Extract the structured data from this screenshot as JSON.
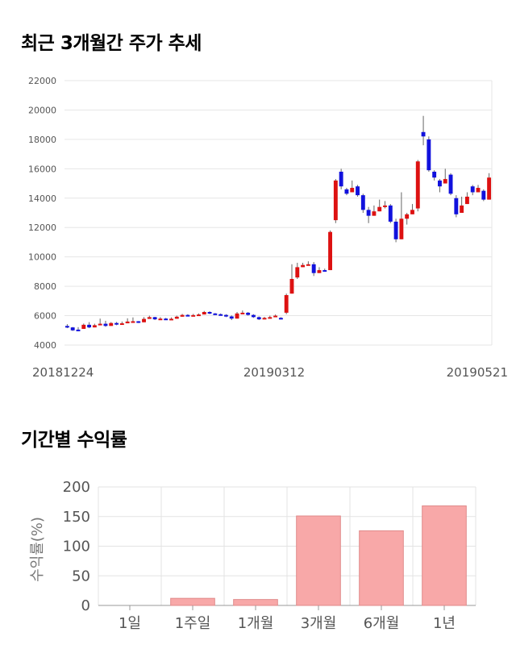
{
  "sections": {
    "price_title": "최근 3개월간 주가 추세",
    "returns_title": "기간별 수익률"
  },
  "chart_data": [
    {
      "type": "candlestick",
      "ylim": [
        4000,
        22000
      ],
      "y_ticks": [
        "22000",
        "20000",
        "18000",
        "16000",
        "14000",
        "12000",
        "10000",
        "8000",
        "6000",
        "4000"
      ],
      "x_tick_labels": [
        "20181224",
        "20190312",
        "20190521"
      ],
      "up_color": "#dd1111",
      "down_color": "#1111dd",
      "candles": [
        [
          5300,
          5420,
          5200,
          5150
        ],
        [
          5200,
          5230,
          5000,
          4960
        ],
        [
          5050,
          5180,
          5020,
          5220
        ],
        [
          5100,
          5420,
          5380,
          5460
        ],
        [
          5380,
          5560,
          5200,
          5150
        ],
        [
          5200,
          5410,
          5350,
          5450
        ],
        [
          5350,
          5520,
          5450,
          5800
        ],
        [
          5450,
          5650,
          5300,
          5240
        ],
        [
          5300,
          5520,
          5500,
          5560
        ],
        [
          5500,
          5570,
          5400,
          5350
        ],
        [
          5400,
          5580,
          5480,
          5600
        ],
        [
          5480,
          5700,
          5600,
          5820
        ],
        [
          5600,
          5720,
          5620,
          5880
        ],
        [
          5620,
          5630,
          5550,
          5500
        ],
        [
          5550,
          5820,
          5780,
          5900
        ],
        [
          5780,
          5950,
          5900,
          6000
        ],
        [
          5900,
          5920,
          5750,
          5700
        ],
        [
          5750,
          5840,
          5800,
          5900
        ],
        [
          5800,
          5850,
          5750,
          5700
        ],
        [
          5750,
          5830,
          5790,
          5880
        ],
        [
          5790,
          5950,
          5930,
          6000
        ],
        [
          5930,
          6080,
          6050,
          6120
        ],
        [
          6050,
          6100,
          6020,
          6000
        ],
        [
          6020,
          6100,
          6040,
          6120
        ],
        [
          6040,
          6120,
          6080,
          6150
        ],
        [
          6080,
          6280,
          6250,
          6320
        ],
        [
          6250,
          6300,
          6150,
          6100
        ],
        [
          6150,
          6180,
          6100,
          6050
        ],
        [
          6100,
          6150,
          6050,
          6000
        ],
        [
          6050,
          6100,
          5950,
          5900
        ],
        [
          5950,
          6020,
          5800,
          5700
        ],
        [
          5800,
          6200,
          6150,
          6250
        ],
        [
          6150,
          6280,
          6200,
          6350
        ],
        [
          6200,
          6250,
          6050,
          6000
        ],
        [
          6050,
          6100,
          5900,
          5850
        ],
        [
          5900,
          5950,
          5750,
          5700
        ],
        [
          5750,
          5900,
          5850,
          5920
        ],
        [
          5850,
          5950,
          5900,
          6000
        ],
        [
          5900,
          6080,
          6000,
          5950
        ],
        [
          5850,
          5900,
          5800,
          5750
        ],
        [
          6200,
          7500,
          7400,
          6100
        ],
        [
          7500,
          8900,
          8500,
          9500
        ],
        [
          8600,
          9600,
          9300,
          8500
        ],
        [
          9300,
          9500,
          9450,
          9600
        ],
        [
          9450,
          9550,
          9500,
          9700
        ],
        [
          9500,
          9650,
          8900,
          8700
        ],
        [
          8900,
          9200,
          9100,
          9300
        ],
        [
          9100,
          9200,
          9050,
          9000
        ],
        [
          9100,
          11800,
          11700,
          9200
        ],
        [
          12500,
          15300,
          15200,
          12300
        ],
        [
          15800,
          16000,
          14800,
          14600
        ],
        [
          14600,
          14700,
          14300,
          14200
        ],
        [
          14400,
          14800,
          14700,
          15200
        ],
        [
          14800,
          14900,
          14200,
          14100
        ],
        [
          14200,
          14300,
          13200,
          13000
        ],
        [
          13200,
          13400,
          12800,
          12300
        ],
        [
          12800,
          13200,
          13100,
          13500
        ],
        [
          13100,
          13500,
          13400,
          13900
        ],
        [
          13400,
          13800,
          13500,
          13300
        ],
        [
          13500,
          13600,
          12400,
          12300
        ],
        [
          12400,
          12600,
          11200,
          11000
        ],
        [
          11200,
          12700,
          12600,
          14400
        ],
        [
          12600,
          13000,
          12900,
          12200
        ],
        [
          12900,
          13300,
          13200,
          13600
        ],
        [
          13300,
          16600,
          16500,
          13100
        ],
        [
          18500,
          19600,
          18200,
          17600
        ],
        [
          18000,
          18200,
          15900,
          15800
        ],
        [
          15800,
          15900,
          15400,
          15200
        ],
        [
          15200,
          15300,
          14800,
          14400
        ],
        [
          15000,
          15400,
          15300,
          16000
        ],
        [
          15600,
          15700,
          14300,
          14200
        ],
        [
          14000,
          14200,
          12900,
          12700
        ],
        [
          13000,
          13600,
          13500,
          14100
        ],
        [
          13600,
          14200,
          14100,
          14400
        ],
        [
          14800,
          14900,
          14400,
          14200
        ],
        [
          14400,
          14800,
          14700,
          14900
        ],
        [
          14500,
          14600,
          13900,
          13800
        ],
        [
          13900,
          15500,
          15400,
          15700
        ]
      ]
    },
    {
      "type": "bar",
      "ylabel": "수익률(%)",
      "ylim": [
        0,
        200
      ],
      "y_ticks": [
        "0",
        "50",
        "100",
        "150",
        "200"
      ],
      "categories": [
        "1일",
        "1주일",
        "1개월",
        "3개월",
        "6개월",
        "1년"
      ],
      "values": [
        0,
        12,
        10,
        151,
        126,
        168
      ],
      "bar_color": "#f8a8a8",
      "bar_edge": "#e08a8a"
    }
  ]
}
